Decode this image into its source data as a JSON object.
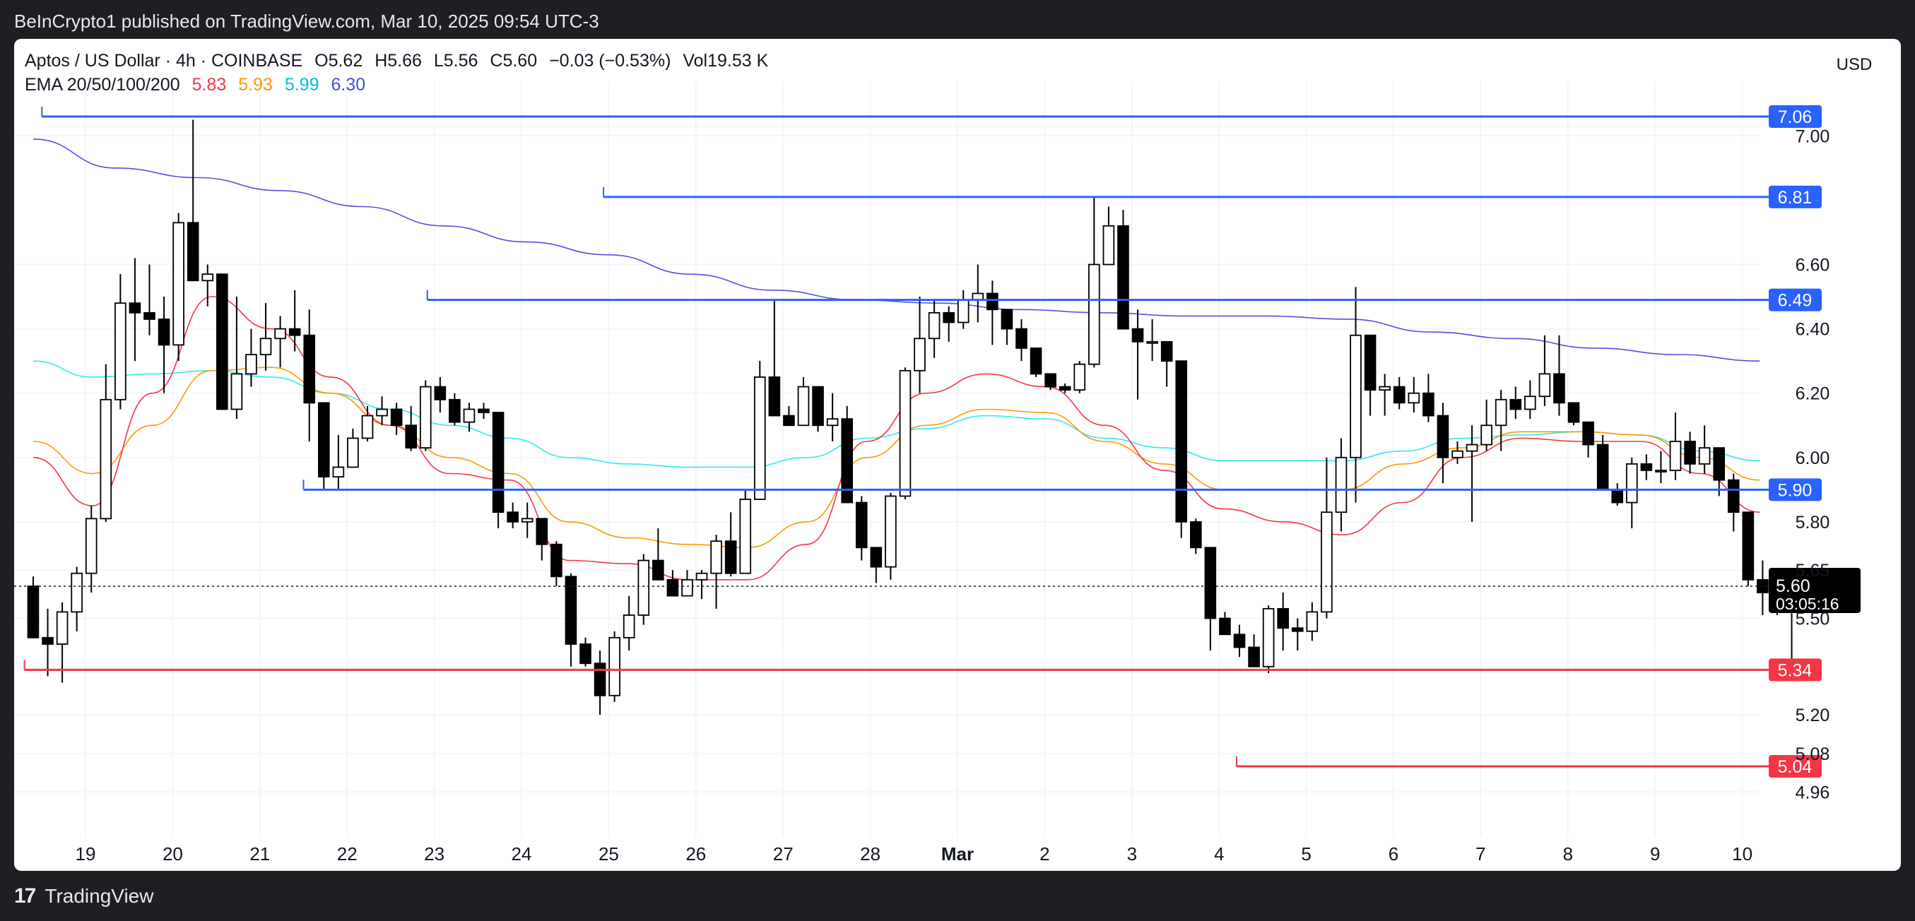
{
  "header": {
    "publisher_line": "BeInCrypto1 published on TradingView.com, Mar 10, 2025 09:54 UTC-3"
  },
  "footer": {
    "brand": "TradingView",
    "logo_glyph": "17"
  },
  "legend": {
    "symbol": "Aptos / US Dollar · 4h · COINBASE",
    "open": "O5.62",
    "high": "H5.66",
    "low": "L5.56",
    "close": "C5.60",
    "change": "−0.03 (−0.53%)",
    "volume": "Vol19.53 K",
    "ema_label": "EMA 20/50/100/200",
    "ema20": "5.83",
    "ema50": "5.93",
    "ema100": "5.99",
    "ema200": "6.30"
  },
  "currency_button": "USD",
  "colors": {
    "ema20": "#f23645",
    "ema50": "#ff9800",
    "ema100": "#33e8f0",
    "ema200": "#5b4ce0",
    "resistance": "#2962ff",
    "support": "#f23645",
    "candle_up": "#ffffff",
    "candle_down": "#000000"
  },
  "chart_data": {
    "type": "candlestick",
    "x_axis_labels": [
      "19",
      "20",
      "21",
      "22",
      "23",
      "24",
      "25",
      "26",
      "27",
      "28",
      "Mar",
      "2",
      "3",
      "4",
      "5",
      "6",
      "7",
      "8",
      "9",
      "10"
    ],
    "y_axis_ticks": [
      7.0,
      6.6,
      6.4,
      6.2,
      6.0,
      5.8,
      5.65,
      5.5,
      5.2,
      5.08,
      4.96
    ],
    "y_range": [
      4.9,
      7.1
    ],
    "last_price": {
      "value": "5.60",
      "countdown": "03:05:16"
    },
    "levels": [
      {
        "value": 7.06,
        "label": "7.06",
        "kind": "resistance",
        "from_x": 18.5
      },
      {
        "value": 6.81,
        "label": "6.81",
        "kind": "resistance",
        "from_x": 24.94
      },
      {
        "value": 6.49,
        "label": "6.49",
        "kind": "resistance",
        "from_x": 22.92
      },
      {
        "value": 5.9,
        "label": "5.90",
        "kind": "resistance",
        "from_x": 21.5
      },
      {
        "value": 5.34,
        "label": "5.34",
        "kind": "support",
        "from_x": 18.3
      },
      {
        "value": 5.04,
        "label": "5.04",
        "kind": "support",
        "from_x": 32.2
      }
    ],
    "candles_4h": [
      [
        5.6,
        5.63,
        5.45,
        5.44,
        5.62
      ],
      [
        5.44,
        5.53,
        5.32,
        5.42,
        5.44
      ],
      [
        5.42,
        5.55,
        5.3,
        5.52,
        5.54
      ],
      [
        5.52,
        5.65,
        5.46,
        5.64,
        5.66
      ],
      [
        5.64,
        5.85,
        5.58,
        5.81,
        5.82
      ],
      [
        5.81,
        6.29,
        5.8,
        6.18,
        6.28
      ],
      [
        6.18,
        6.57,
        6.15,
        6.48,
        6.55
      ],
      [
        6.48,
        6.62,
        6.3,
        6.45,
        6.46
      ],
      [
        6.45,
        6.6,
        6.38,
        6.43,
        6.46
      ],
      [
        6.43,
        6.5,
        6.2,
        6.35,
        6.36
      ],
      [
        6.35,
        6.76,
        6.3,
        6.73,
        6.76
      ],
      [
        6.73,
        7.05,
        6.55,
        6.55,
        6.56
      ],
      [
        6.55,
        6.6,
        6.47,
        6.57,
        6.57
      ],
      [
        6.57,
        6.56,
        6.15,
        6.15,
        6.16
      ],
      [
        6.15,
        6.5,
        6.12,
        6.26,
        6.3
      ],
      [
        6.26,
        6.4,
        6.22,
        6.32,
        6.34
      ],
      [
        6.32,
        6.48,
        6.27,
        6.37,
        6.39
      ],
      [
        6.37,
        6.44,
        6.28,
        6.4,
        6.41
      ],
      [
        6.4,
        6.52,
        6.33,
        6.38,
        6.4
      ],
      [
        6.38,
        6.46,
        6.05,
        6.17,
        6.18
      ],
      [
        6.17,
        6.1,
        5.9,
        5.94,
        6.0
      ],
      [
        5.94,
        6.07,
        5.9,
        5.97,
        5.98
      ],
      [
        5.97,
        6.09,
        5.97,
        6.06,
        6.08
      ],
      [
        6.06,
        6.16,
        6.05,
        6.13,
        6.15
      ],
      [
        6.13,
        6.19,
        6.1,
        6.15,
        6.16
      ],
      [
        6.15,
        6.17,
        6.07,
        6.1,
        6.11
      ],
      [
        6.1,
        6.16,
        6.02,
        6.03,
        6.04
      ],
      [
        6.03,
        6.24,
        6.02,
        6.22,
        6.23
      ],
      [
        6.22,
        6.25,
        6.14,
        6.18,
        6.19
      ],
      [
        6.18,
        6.2,
        6.1,
        6.11,
        6.12
      ],
      [
        6.11,
        6.17,
        6.08,
        6.15,
        6.17
      ],
      [
        6.15,
        6.17,
        6.12,
        6.14,
        6.15
      ],
      [
        6.14,
        6.12,
        5.78,
        5.83,
        5.83
      ],
      [
        5.83,
        5.86,
        5.78,
        5.8,
        5.81
      ],
      [
        5.8,
        5.86,
        5.75,
        5.81,
        5.82
      ],
      [
        5.81,
        5.77,
        5.68,
        5.73,
        5.77
      ],
      [
        5.73,
        5.74,
        5.6,
        5.63,
        5.74
      ],
      [
        5.63,
        5.64,
        5.35,
        5.42,
        5.64
      ],
      [
        5.42,
        5.44,
        5.35,
        5.36,
        5.44
      ],
      [
        5.36,
        5.4,
        5.2,
        5.26,
        5.4
      ],
      [
        5.26,
        5.46,
        5.24,
        5.44,
        5.46
      ],
      [
        5.44,
        5.57,
        5.4,
        5.51,
        5.53
      ],
      [
        5.51,
        5.7,
        5.48,
        5.68,
        5.7
      ],
      [
        5.68,
        5.78,
        5.63,
        5.62,
        5.7
      ],
      [
        5.62,
        5.65,
        5.58,
        5.57,
        5.62
      ],
      [
        5.57,
        5.65,
        5.57,
        5.62,
        5.65
      ],
      [
        5.62,
        5.64,
        5.56,
        5.64,
        5.65
      ],
      [
        5.64,
        5.76,
        5.53,
        5.74,
        5.76
      ],
      [
        5.74,
        5.83,
        5.63,
        5.64,
        5.74
      ],
      [
        5.64,
        5.9,
        5.64,
        5.87,
        5.9
      ],
      [
        5.87,
        6.26,
        5.9,
        6.25,
        6.3
      ],
      [
        6.25,
        6.49,
        6.13,
        6.13,
        6.25
      ],
      [
        6.13,
        6.16,
        6.11,
        6.1,
        6.12
      ],
      [
        6.1,
        6.25,
        6.12,
        6.22,
        6.25
      ],
      [
        6.22,
        6.21,
        6.08,
        6.1,
        6.12
      ],
      [
        6.1,
        6.2,
        6.05,
        6.12,
        6.13
      ],
      [
        6.12,
        6.16,
        6.0,
        5.86,
        6.12
      ],
      [
        5.86,
        5.88,
        5.68,
        5.72,
        5.86
      ],
      [
        5.72,
        5.7,
        5.61,
        5.66,
        5.72
      ],
      [
        5.66,
        5.88,
        5.62,
        5.88,
        5.89
      ],
      [
        5.88,
        6.28,
        5.87,
        6.27,
        6.28
      ],
      [
        6.27,
        6.5,
        6.2,
        6.37,
        6.4
      ],
      [
        6.37,
        6.49,
        6.31,
        6.45,
        6.49
      ],
      [
        6.45,
        6.47,
        6.36,
        6.42,
        6.45
      ],
      [
        6.42,
        6.49,
        6.4,
        6.49,
        6.52
      ],
      [
        6.49,
        6.6,
        6.42,
        6.51,
        6.52
      ],
      [
        6.51,
        6.55,
        6.35,
        6.46,
        6.52
      ],
      [
        6.46,
        6.45,
        6.35,
        6.4,
        6.44
      ],
      [
        6.4,
        6.43,
        6.3,
        6.34,
        6.4
      ],
      [
        6.34,
        6.33,
        6.25,
        6.26,
        6.34
      ],
      [
        6.26,
        6.25,
        6.21,
        6.22,
        6.26
      ],
      [
        6.22,
        6.23,
        6.2,
        6.21,
        6.22
      ],
      [
        6.21,
        6.3,
        6.2,
        6.29,
        6.3
      ],
      [
        6.29,
        6.62,
        6.28,
        6.6,
        6.81
      ],
      [
        6.6,
        6.78,
        6.6,
        6.72,
        6.78
      ],
      [
        6.72,
        6.77,
        6.4,
        6.4,
        6.72
      ],
      [
        6.4,
        6.46,
        6.18,
        6.36,
        6.43
      ],
      [
        6.36,
        6.4,
        6.3,
        6.36,
        6.43
      ],
      [
        6.36,
        6.35,
        6.22,
        6.3,
        6.36
      ],
      [
        6.3,
        6.26,
        5.75,
        5.8,
        6.3
      ],
      [
        5.8,
        5.81,
        5.7,
        5.72,
        5.8
      ],
      [
        5.72,
        5.7,
        5.4,
        5.5,
        5.72
      ],
      [
        5.5,
        5.52,
        5.45,
        5.45,
        5.52
      ],
      [
        5.45,
        5.48,
        5.38,
        5.41,
        5.48
      ],
      [
        5.41,
        5.45,
        5.37,
        5.35,
        5.45
      ],
      [
        5.35,
        5.54,
        5.33,
        5.53,
        5.54
      ],
      [
        5.53,
        5.5,
        5.4,
        5.47,
        5.58
      ],
      [
        5.47,
        5.5,
        5.4,
        5.46,
        5.5
      ],
      [
        5.46,
        5.55,
        5.43,
        5.52,
        5.54
      ],
      [
        5.52,
        5.84,
        5.5,
        5.83,
        6.0
      ],
      [
        5.83,
        6.03,
        5.77,
        6.0,
        6.06
      ],
      [
        6.0,
        6.37,
        5.86,
        6.38,
        6.53
      ],
      [
        6.38,
        6.35,
        6.13,
        6.21,
        6.38
      ],
      [
        6.21,
        6.26,
        6.13,
        6.22,
        6.26
      ],
      [
        6.22,
        6.25,
        6.15,
        6.17,
        6.25
      ],
      [
        6.17,
        6.25,
        6.14,
        6.2,
        6.25
      ],
      [
        6.2,
        6.26,
        6.11,
        6.13,
        6.26
      ],
      [
        6.13,
        6.17,
        5.92,
        6.0,
        6.13
      ],
      [
        6.0,
        6.04,
        5.98,
        6.02,
        6.05
      ],
      [
        6.02,
        6.07,
        5.8,
        6.04,
        6.1
      ],
      [
        6.04,
        6.12,
        6.02,
        6.1,
        6.18
      ],
      [
        6.1,
        6.19,
        6.02,
        6.18,
        6.21
      ],
      [
        6.18,
        6.2,
        6.12,
        6.15,
        6.22
      ],
      [
        6.15,
        6.2,
        6.12,
        6.19,
        6.24
      ],
      [
        6.19,
        6.27,
        6.16,
        6.26,
        6.38
      ],
      [
        6.26,
        6.37,
        6.13,
        6.17,
        6.38
      ],
      [
        6.17,
        6.16,
        6.1,
        6.11,
        6.17
      ],
      [
        6.11,
        6.1,
        6.0,
        6.04,
        6.11
      ],
      [
        6.04,
        6.07,
        5.97,
        5.9,
        6.04
      ],
      [
        5.9,
        5.92,
        5.85,
        5.86,
        5.92
      ],
      [
        5.86,
        5.99,
        5.78,
        5.98,
        6.0
      ],
      [
        5.98,
        6.01,
        5.93,
        5.96,
        6.01
      ],
      [
        5.96,
        6.02,
        5.92,
        5.96,
        6.02
      ],
      [
        5.96,
        6.1,
        5.93,
        6.05,
        6.14
      ],
      [
        6.05,
        6.08,
        5.95,
        5.98,
        6.08
      ],
      [
        5.98,
        6.1,
        5.95,
        6.03,
        6.09
      ],
      [
        6.03,
        6.02,
        5.88,
        5.93,
        6.03
      ],
      [
        5.93,
        5.95,
        5.77,
        5.83,
        5.95
      ],
      [
        5.83,
        5.75,
        5.6,
        5.62,
        5.83
      ],
      [
        5.62,
        5.68,
        5.51,
        5.58,
        5.68
      ],
      [
        5.58,
        5.61,
        5.51,
        5.52,
        5.61
      ],
      [
        5.52,
        5.57,
        5.37,
        5.58,
        5.59
      ],
      [
        5.58,
        5.62,
        5.56,
        5.6,
        5.63
      ]
    ],
    "ema20": [
      6.0,
      5.85,
      6.2,
      6.5,
      6.4,
      6.25,
      6.1,
      5.95,
      5.93,
      5.68,
      5.67,
      5.62,
      5.62,
      5.73,
      6.05,
      6.2,
      6.26,
      6.22,
      6.1,
      5.96,
      5.84,
      5.8,
      5.76,
      5.86,
      6.0,
      6.06,
      6.05,
      6.05,
      5.95,
      5.83
    ],
    "ema50": [
      6.05,
      5.95,
      6.1,
      6.27,
      6.28,
      6.2,
      6.1,
      6.0,
      5.95,
      5.8,
      5.75,
      5.73,
      5.72,
      5.8,
      6.0,
      6.1,
      6.15,
      6.14,
      6.05,
      5.98,
      5.9,
      5.9,
      5.9,
      5.98,
      6.03,
      6.08,
      6.08,
      6.07,
      6.0,
      5.93
    ],
    "ema100": [
      6.3,
      6.25,
      6.26,
      6.27,
      6.25,
      6.2,
      6.15,
      6.1,
      6.06,
      6.0,
      5.98,
      5.97,
      5.97,
      6.0,
      6.06,
      6.09,
      6.13,
      6.12,
      6.06,
      6.03,
      5.99,
      5.99,
      5.99,
      6.02,
      6.06,
      6.07,
      6.08,
      6.07,
      6.02,
      5.99
    ],
    "ema200": [
      6.99,
      6.9,
      6.87,
      6.83,
      6.78,
      6.72,
      6.67,
      6.63,
      6.57,
      6.52,
      6.49,
      6.48,
      6.46,
      6.45,
      6.44,
      6.44,
      6.43,
      6.39,
      6.37,
      6.34,
      6.32,
      6.3
    ]
  }
}
